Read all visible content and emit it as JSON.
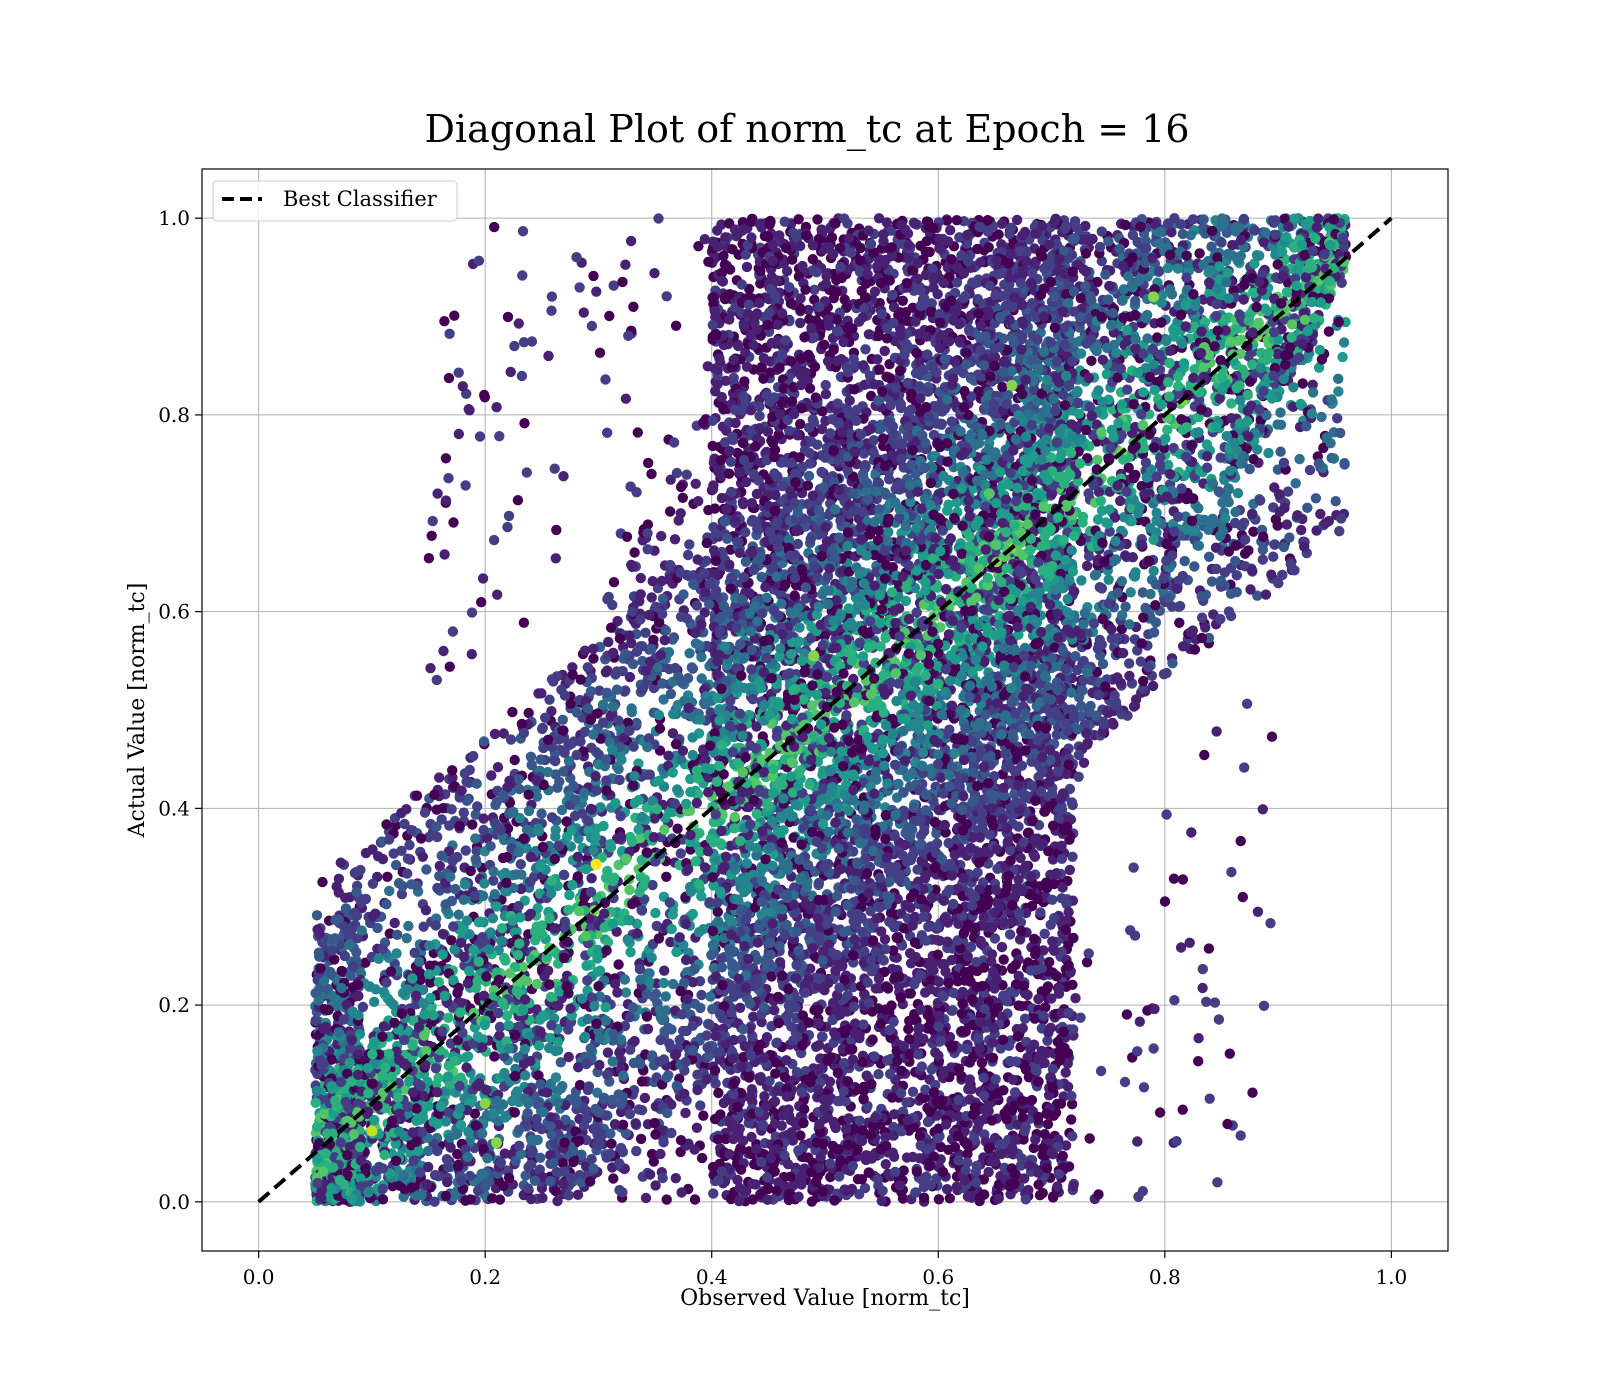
{
  "chart_data": {
    "type": "scatter",
    "title": "Diagonal Plot of norm_tc at Epoch = 16",
    "xlabel": "Observed Value [norm_tc]",
    "ylabel": "Actual Value [norm_tc]",
    "xlim": [
      -0.05,
      1.05
    ],
    "ylim": [
      -0.05,
      1.05
    ],
    "x_ticks": [
      "0.0",
      "0.2",
      "0.4",
      "0.6",
      "0.8",
      "1.0"
    ],
    "y_ticks": [
      "0.0",
      "0.2",
      "0.4",
      "0.6",
      "0.8",
      "1.0"
    ],
    "grid": true,
    "colormap": "viridis",
    "colors": [
      "#440154",
      "#482173",
      "#433e85",
      "#38588c",
      "#2d708e",
      "#25858e",
      "#1e9b8a",
      "#2ab07f",
      "#52c569",
      "#86d549",
      "#c2df23",
      "#fde725"
    ],
    "reference_line": {
      "label": "Best Classifier",
      "x": [
        0.0,
        1.0
      ],
      "y": [
        0.0,
        1.0
      ],
      "style": "dashed",
      "color": "#000000"
    },
    "legend": {
      "position": "top-left",
      "entries": [
        "Best Classifier"
      ]
    },
    "point_cloud": {
      "description_regions": [
        {
          "x_range": [
            0.05,
            0.96
          ],
          "y_range": [
            0.0,
            1.0
          ]
        }
      ],
      "highlighted_points": [
        {
          "x": 0.298,
          "y": 0.343,
          "value": 1.0
        },
        {
          "x": 0.79,
          "y": 0.92,
          "value": 0.85
        },
        {
          "x": 0.2,
          "y": 0.1,
          "value": 0.8
        },
        {
          "x": 0.21,
          "y": 0.06,
          "value": 0.85
        },
        {
          "x": 0.665,
          "y": 0.83,
          "value": 0.8
        },
        {
          "x": 0.49,
          "y": 0.555,
          "value": 0.8
        },
        {
          "x": 0.1,
          "y": 0.072,
          "value": 0.9
        },
        {
          "x": 0.645,
          "y": 0.72,
          "value": 0.75
        }
      ]
    }
  }
}
